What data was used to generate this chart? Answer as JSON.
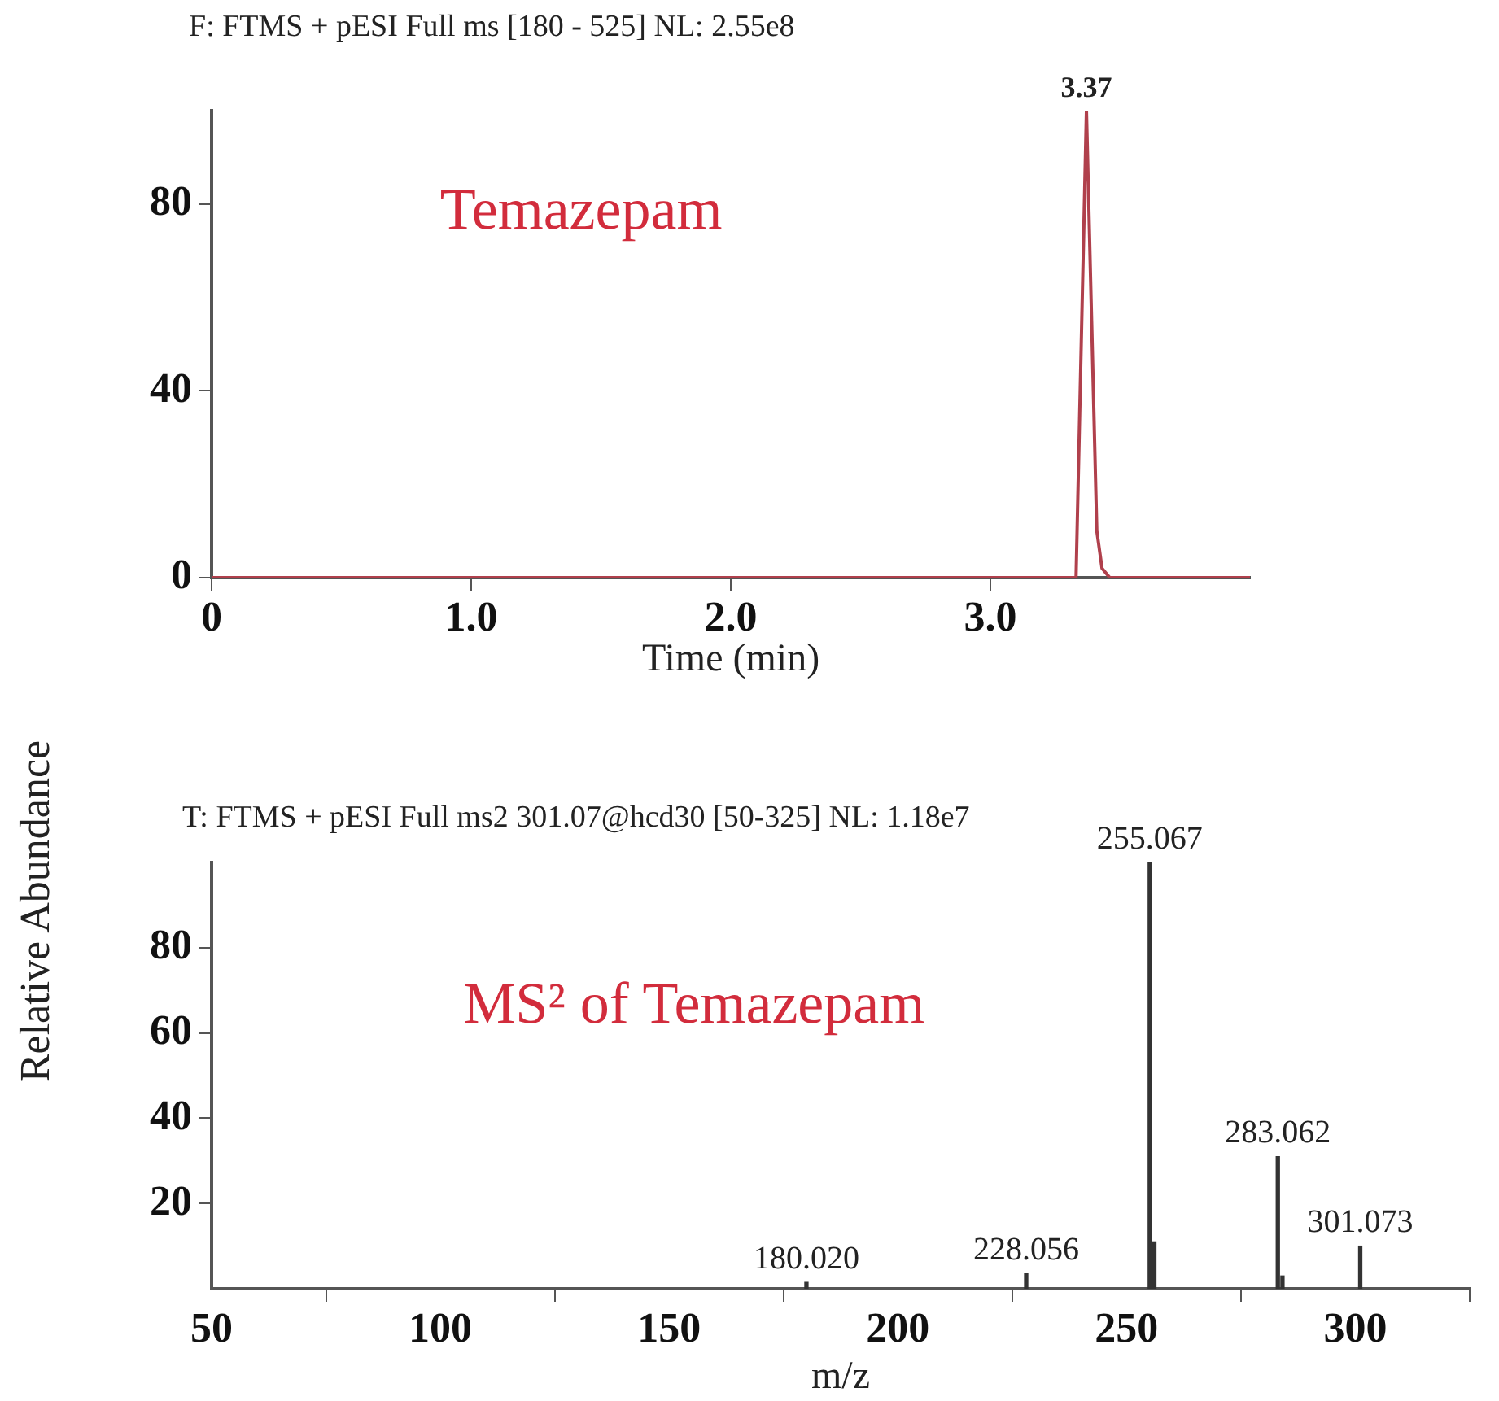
{
  "chart_data": [
    {
      "type": "line",
      "title": "F: FTMS + pESI Full ms [180 - 525] NL: 2.55e8",
      "xlabel": "Time (min)",
      "ylabel": "Relative Abundance",
      "x": [
        0,
        1,
        2,
        3,
        3.33,
        3.35,
        3.37,
        3.39,
        3.41,
        3.43,
        3.46,
        4.0
      ],
      "series": [
        {
          "color": "#b0404c",
          "values": [
            0,
            0,
            0,
            0,
            0,
            50,
            100,
            55,
            10,
            2,
            0,
            0
          ]
        }
      ],
      "xlim": [
        0,
        4.0
      ],
      "xticks": [
        0,
        {
          "value": 1,
          "label": "1.0"
        },
        {
          "value": 2,
          "label": "2.0"
        },
        {
          "value": 3,
          "label": "3.0"
        }
      ],
      "ylim": [
        0,
        100
      ],
      "yticks": [
        0,
        40,
        80
      ],
      "annotations": [
        "Temazepam",
        {
          "text": "3.37",
          "x": 3.37,
          "y": 100
        }
      ]
    },
    {
      "type": "bar",
      "title": "T: FTMS + pESI Full ms2 301.07@hcd30 [50-325] NL: 1.18e7",
      "xlabel": "m/z",
      "x": [
        180.02,
        228.056,
        255.067,
        256.07,
        283.062,
        284.07,
        301.073
      ],
      "series": [
        {
          "color": "#333333",
          "values": [
            1.5,
            3.5,
            100,
            11,
            31,
            3,
            10
          ]
        }
      ],
      "xlim": [
        50,
        325
      ],
      "xticks": [
        50,
        100,
        150,
        200,
        250,
        300
      ],
      "ylim": [
        0,
        100
      ],
      "yticks": [
        20,
        40,
        60,
        80
      ],
      "annotations": [
        "MS² of Temazepam",
        {
          "text": "180.020",
          "x": 180.02,
          "y": 1.5
        },
        {
          "text": "228.056",
          "x": 228.056,
          "y": 3.5
        },
        {
          "text": "255.067",
          "x": 255.067,
          "y": 100
        },
        {
          "text": "283.062",
          "x": 283.062,
          "y": 31
        },
        {
          "text": "301.073",
          "x": 301.073,
          "y": 10
        }
      ]
    }
  ]
}
